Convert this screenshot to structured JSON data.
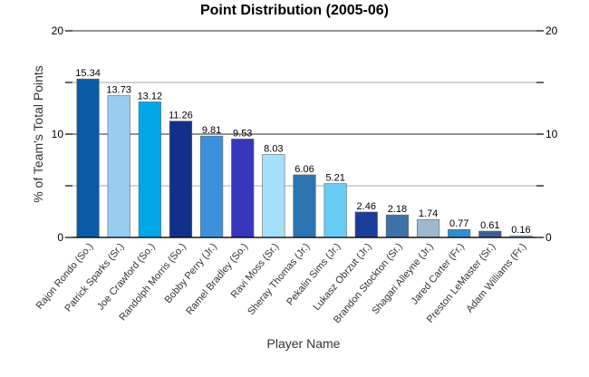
{
  "chart_data": {
    "type": "bar",
    "title": "Point Distribution (2005-06)",
    "xlabel": "Player Name",
    "ylabel": "% of Team's Total Points",
    "ylim": [
      0,
      20
    ],
    "y_ticks": [
      0,
      10,
      20
    ],
    "grid": true,
    "categories": [
      "Rajon Rondo (So.)",
      "Patrick Sparks (Sr.)",
      "Joe Crawford (So.)",
      "Randolph Morris (So.)",
      "Bobby Perry (Jr.)",
      "Ramel Bradley (So.)",
      "Ravi Moss (Sr.)",
      "Sheray Thomas (Jr.)",
      "Pekalin Sims (Jr.)",
      "Lukasz Obrzut (Jr.)",
      "Brandon Stockton (Sr.)",
      "Shagari Alleyne (Jr.)",
      "Jared Carter (Fr.)",
      "Preston LeMaster (Sr.)",
      "Adam Williams (Fr.)"
    ],
    "values": [
      15.34,
      13.73,
      13.12,
      11.26,
      9.81,
      9.53,
      8.03,
      6.06,
      5.21,
      2.46,
      2.18,
      1.74,
      0.77,
      0.61,
      0.16
    ],
    "value_labels": [
      "15.34",
      "13.73",
      "13.12",
      "11.26",
      "9.81",
      "9.53",
      "8.03",
      "6.06",
      "5.21",
      "2.46",
      "2.18",
      "1.74",
      "0.77",
      "0.61",
      "0.16"
    ],
    "colors": [
      "#0a5aa6",
      "#99ccf0",
      "#00a8e8",
      "#12308a",
      "#3d91dc",
      "#3636bb",
      "#a4e0fa",
      "#2c73b2",
      "#66ccf5",
      "#1c3c9a",
      "#3c73a4",
      "#9db8ce",
      "#2f8ed0",
      "#3c5d98",
      "#9fc3e3"
    ]
  }
}
